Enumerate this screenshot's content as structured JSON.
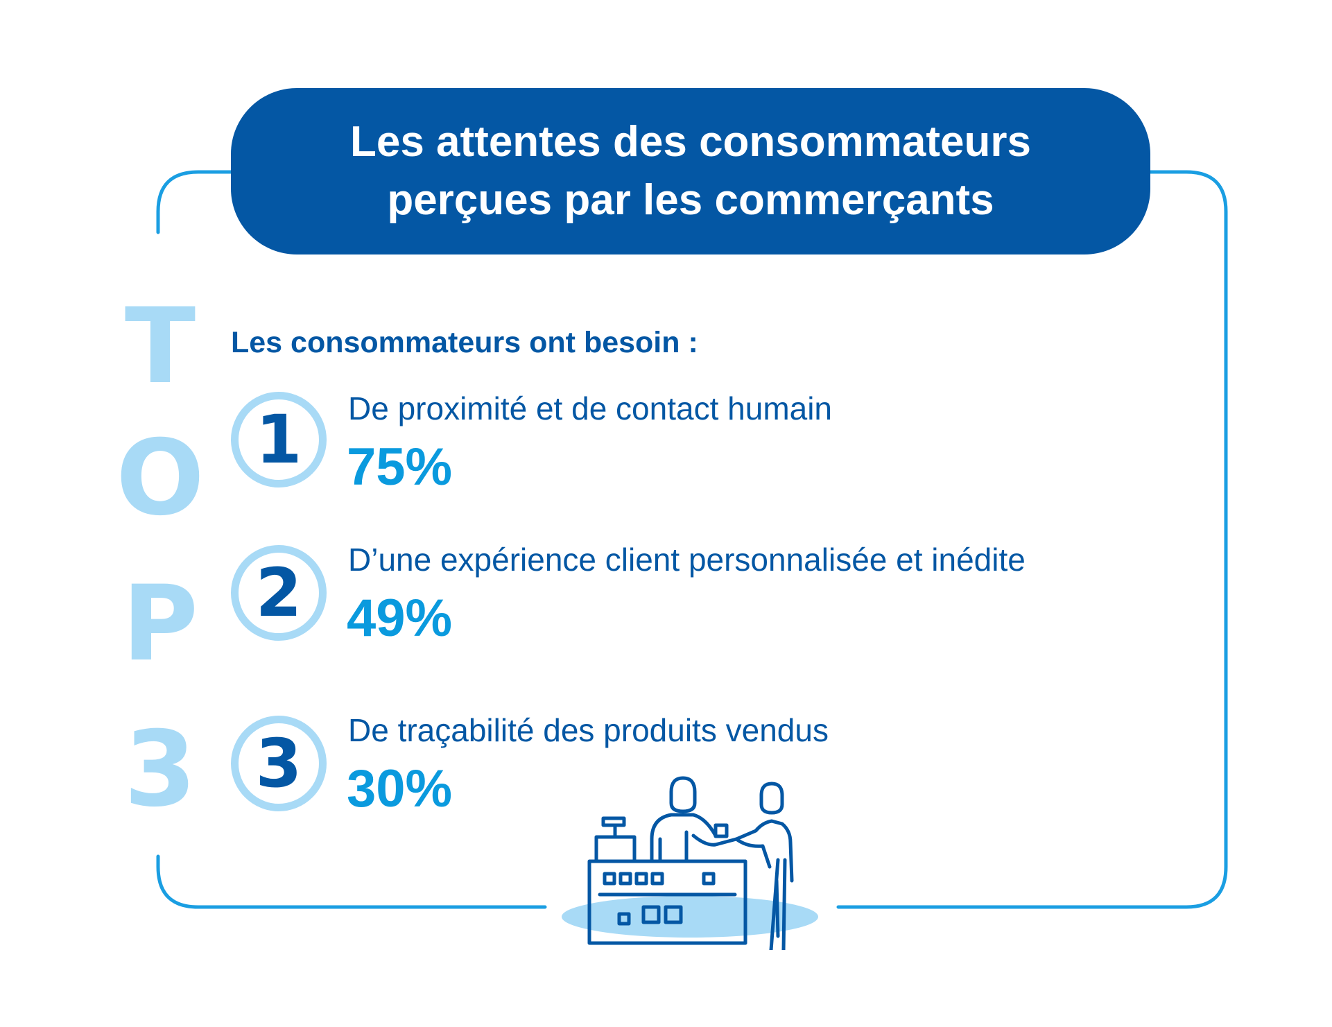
{
  "title": {
    "line1": "Les attentes des consommateurs",
    "line2": "perçues par les commerçants"
  },
  "top_label": [
    "T",
    "O",
    "P",
    "3"
  ],
  "subtitle": "Les consommateurs ont besoin :",
  "items": [
    {
      "rank": "1",
      "label": "De proximité et de contact humain",
      "percent": "75%"
    },
    {
      "rank": "2",
      "label": "D’une expérience client personnalisée et inédite",
      "percent": "49%"
    },
    {
      "rank": "3",
      "label": "De traçabilité des produits vendus",
      "percent": "30%"
    }
  ],
  "colors": {
    "dark_blue": "#0457a4",
    "accent_blue": "#0a9ade",
    "light_blue": "#a8daf6",
    "frame_blue": "#1a9ee2"
  },
  "illustration": "shop-counter-cashier-customer-icon"
}
